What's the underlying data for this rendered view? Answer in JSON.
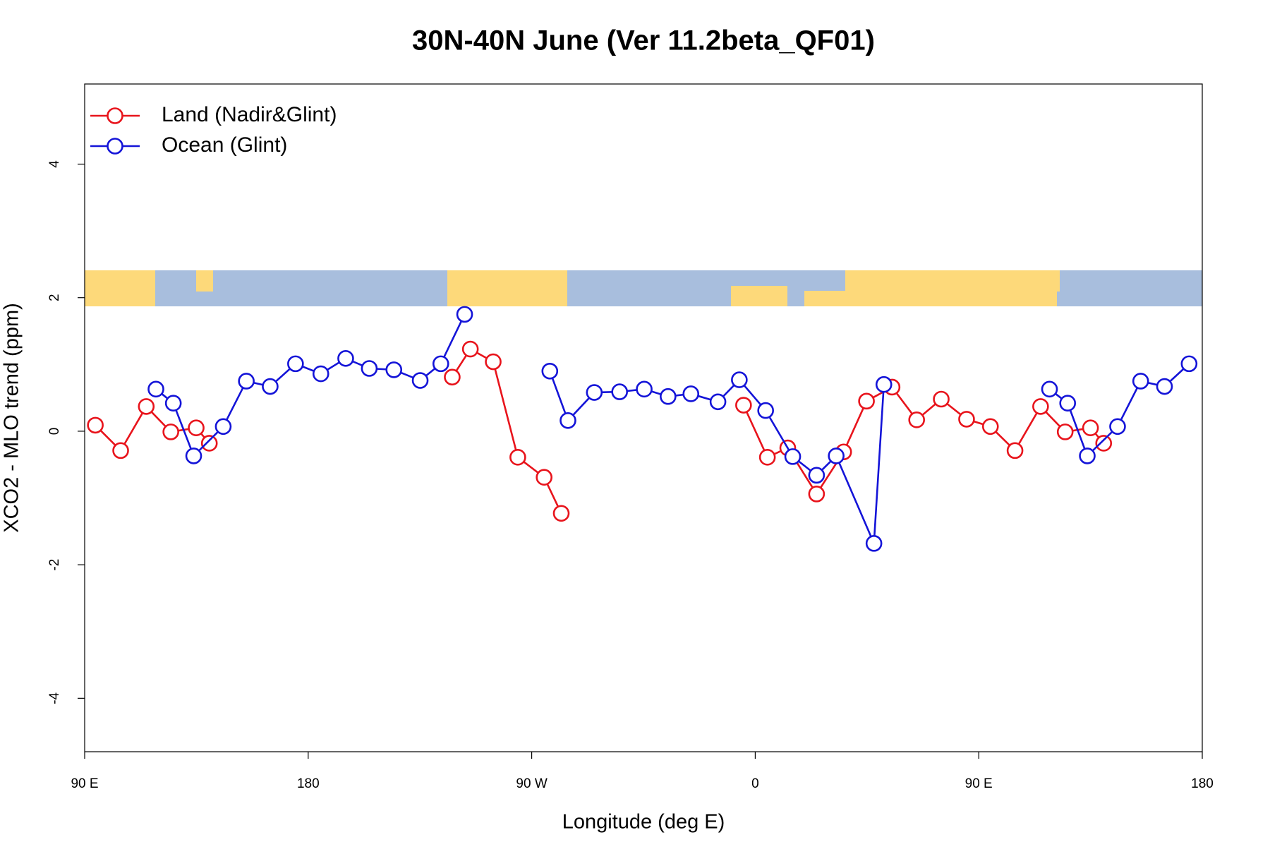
{
  "chart_data": {
    "type": "line",
    "title": "30N-40N June (Ver 11.2beta_QF01)",
    "x_label": "Longitude (deg E)",
    "y_label": "XCO2 - MLO trend (ppm)",
    "xlim": [
      90,
      540
    ],
    "xticks": [
      {
        "value": 90,
        "label": "90 E"
      },
      {
        "value": 180,
        "label": "180"
      },
      {
        "value": 270,
        "label": "90 W"
      },
      {
        "value": 360,
        "label": "0"
      },
      {
        "value": 450,
        "label": "90 E"
      },
      {
        "value": 540,
        "label": "180"
      }
    ],
    "ylim": [
      -4.8,
      5.2
    ],
    "yticks": [
      -4,
      -2,
      0,
      2,
      4
    ],
    "grid": false,
    "legend": "top-left",
    "series": [
      {
        "name": "Land (Nadir&Glint)",
        "color": "#e8141c",
        "x": [
          94.3,
          104.5,
          114.8,
          124.7,
          134.9,
          140.2,
          null,
          238.0,
          245.3,
          254.5,
          264.4,
          275.0,
          281.9,
          null,
          355.3,
          364.9,
          373.1,
          384.7,
          395.6,
          404.8,
          415.1,
          425.0,
          434.9,
          445.1,
          454.7,
          464.6,
          474.9,
          484.8,
          495.0,
          500.3
        ],
        "values": [
          0.09,
          -0.29,
          0.37,
          -0.01,
          0.05,
          -0.18,
          null,
          0.81,
          1.23,
          1.04,
          -0.39,
          -0.69,
          -1.23,
          null,
          0.39,
          -0.39,
          -0.25,
          -0.94,
          -0.31,
          0.45,
          0.66,
          0.17,
          0.48,
          0.18,
          0.07,
          -0.29,
          0.37,
          -0.01,
          0.05,
          -0.18
        ]
      },
      {
        "name": "Ocean (Glint)",
        "color": "#1414d8",
        "x": [
          118.7,
          125.7,
          133.9,
          145.8,
          155.1,
          164.7,
          174.9,
          185.1,
          195.1,
          204.6,
          214.5,
          225.1,
          233.4,
          243.0,
          null,
          277.3,
          284.6,
          295.2,
          305.4,
          315.3,
          324.9,
          334.1,
          345.0,
          353.6,
          364.2,
          375.1,
          384.7,
          392.6,
          407.8,
          411.8,
          null,
          478.5,
          485.8,
          493.7,
          505.9,
          515.2,
          524.8,
          534.7
        ],
        "values": [
          0.63,
          0.42,
          -0.37,
          0.07,
          0.75,
          0.67,
          1.01,
          0.86,
          1.09,
          0.94,
          0.92,
          0.76,
          1.01,
          1.75,
          null,
          0.9,
          0.16,
          0.58,
          0.59,
          0.63,
          0.52,
          0.56,
          0.44,
          0.77,
          0.31,
          -0.38,
          -0.66,
          -0.37,
          -1.68,
          0.7,
          null,
          0.63,
          0.42,
          -0.37,
          0.07,
          0.75,
          0.67,
          1.01
        ]
      }
    ]
  }
}
